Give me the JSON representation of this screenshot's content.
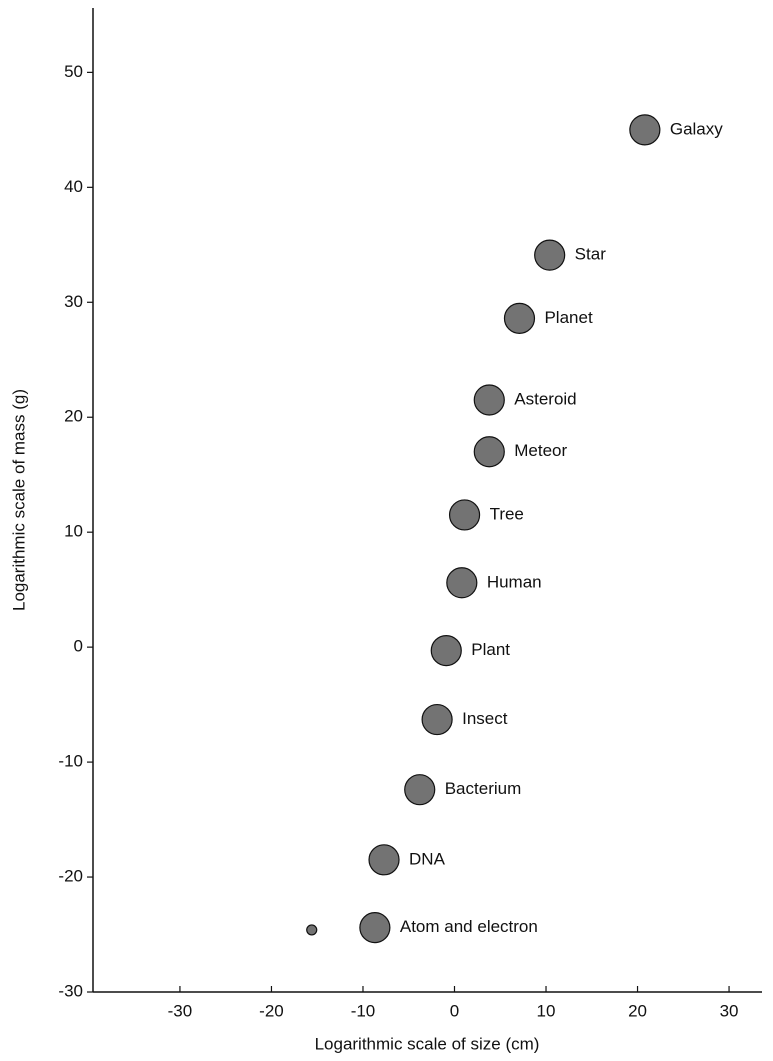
{
  "chart_data": {
    "type": "scatter",
    "x_label": "Logarithmic scale of size (cm)",
    "y_label": "Logarithmic scale of mass (g)",
    "xlim": [
      -39.5,
      33.6
    ],
    "ylim": [
      -30,
      55.6
    ],
    "xticks": [
      -30,
      -20,
      -10,
      0,
      10,
      20,
      30
    ],
    "yticks": [
      -30,
      -20,
      -10,
      0,
      10,
      20,
      30,
      40,
      50
    ],
    "color": "#444444",
    "points": [
      {
        "label": "Galaxy",
        "x": 20.8,
        "y": 45
      },
      {
        "label": "Star",
        "x": 10.4,
        "y": 34.1
      },
      {
        "label": "Planet",
        "x": 7.1,
        "y": 28.6
      },
      {
        "label": "Asteroid",
        "x": 3.8,
        "y": 21.5
      },
      {
        "label": "Meteor",
        "x": 3.8,
        "y": 17
      },
      {
        "label": "Tree",
        "x": 1.1,
        "y": 11.5
      },
      {
        "label": "Human",
        "x": 0.8,
        "y": 5.6
      },
      {
        "label": "Plant",
        "x": -0.9,
        "y": -0.3
      },
      {
        "label": "Insect",
        "x": -1.9,
        "y": -6.3
      },
      {
        "label": "Bacterium",
        "x": -3.8,
        "y": -12.4
      },
      {
        "label": "DNA",
        "x": -7.7,
        "y": -18.5
      },
      {
        "label": "Atom and electron",
        "x": -8.7,
        "y": -24.4
      },
      {
        "label": null,
        "x": -15.6,
        "y": -24.6
      }
    ]
  }
}
